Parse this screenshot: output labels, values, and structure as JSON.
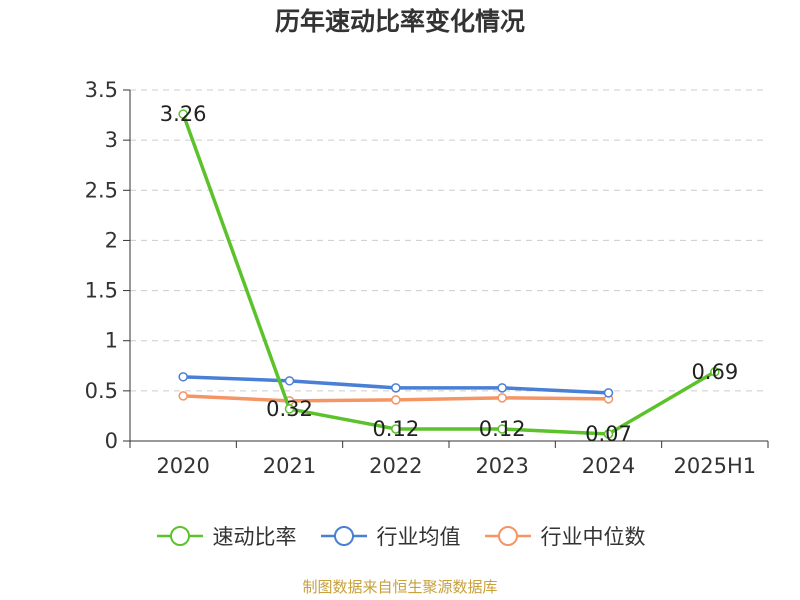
{
  "title": "历年速动比率变化情况",
  "source": "制图数据来自恒生聚源数据库",
  "chart_data": {
    "type": "line",
    "title": "历年速动比率变化情况",
    "categories": [
      "2020",
      "2021",
      "2022",
      "2023",
      "2024",
      "2025H1"
    ],
    "ylim": [
      0,
      3.5
    ],
    "yticks": [
      "0",
      "0.5",
      "1",
      "1.5",
      "2",
      "2.5",
      "3",
      "3.5"
    ],
    "grid": true,
    "legend_position": "bottom",
    "series": [
      {
        "name": "速动比率",
        "color": "#5cc22b",
        "values": [
          3.26,
          0.32,
          0.12,
          0.12,
          0.07,
          0.69
        ],
        "labels": [
          "3.26",
          "0.32",
          "0.12",
          "0.12",
          "0.07",
          "0.69"
        ]
      },
      {
        "name": "行业均值",
        "color": "#4a7fd6",
        "values": [
          0.64,
          0.6,
          0.53,
          0.53,
          0.48,
          null
        ]
      },
      {
        "name": "行业中位数",
        "color": "#f59464",
        "values": [
          0.45,
          0.4,
          0.41,
          0.43,
          0.42,
          null
        ]
      }
    ]
  }
}
